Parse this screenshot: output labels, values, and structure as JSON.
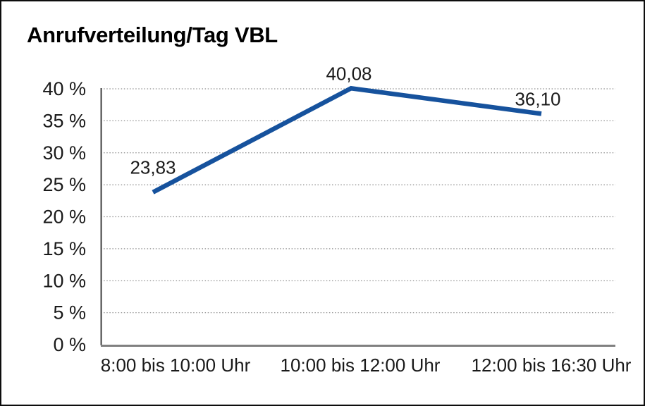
{
  "page": {
    "background_color": "#ffffff",
    "border_color": "#0d0d0d"
  },
  "chart_data": {
    "type": "line",
    "title": "Anrufverteilung/Tag VBL",
    "categories": [
      "8:00 bis 10:00 Uhr",
      "10:00 bis 12:00 Uhr",
      "12:00 bis 16:30 Uhr"
    ],
    "series": [
      {
        "values": [
          23.83,
          40.08,
          36.1
        ],
        "point_labels": [
          "23,83",
          "40,08",
          "36,10"
        ],
        "color": "#16529d"
      }
    ],
    "xlabel": "",
    "ylabel": "",
    "ylim": [
      0,
      40
    ],
    "yticks": [
      0,
      5,
      10,
      15,
      20,
      25,
      30,
      35,
      40
    ],
    "ytick_suffix": " %",
    "grid": "horizontal-dotted",
    "legend": "none",
    "line_color": "#16529d",
    "gridline_color": "#8f8f8f",
    "text_color": "#1a1a1a"
  }
}
